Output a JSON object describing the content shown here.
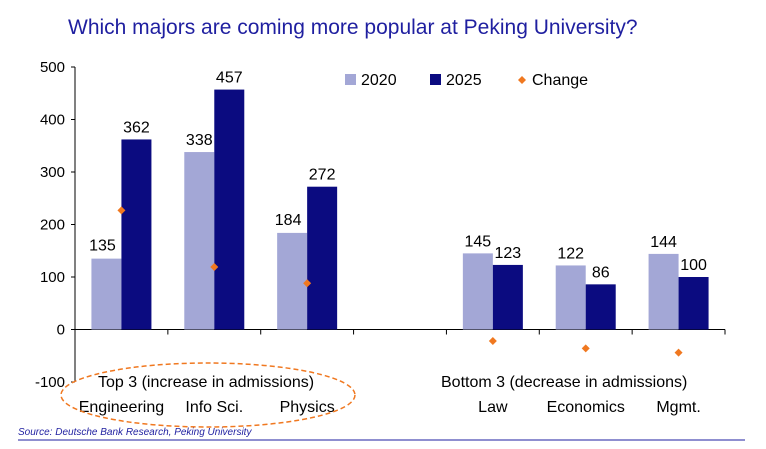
{
  "chart_data": {
    "type": "bar",
    "title": "Which majors are coming more popular at Peking University?",
    "categories": [
      "Engineering",
      "Info Sci.",
      "Physics",
      "",
      "Law",
      "Economics",
      "Mgmt."
    ],
    "series": [
      {
        "name": "2020",
        "values": [
          135,
          338,
          184,
          null,
          145,
          122,
          144
        ],
        "color": "#a3a7d6"
      },
      {
        "name": "2025",
        "values": [
          362,
          457,
          272,
          null,
          123,
          86,
          100
        ],
        "color": "#0b0b80"
      }
    ],
    "change": {
      "name": "Change",
      "values": [
        227,
        119,
        88,
        null,
        -22,
        -36,
        -44
      ],
      "color": "#f07820"
    },
    "ylim": [
      -100,
      500
    ],
    "yticks": [
      "500",
      "400",
      "300",
      "200",
      "100",
      "0",
      "-100"
    ],
    "legend_position": "top-right",
    "groups": {
      "top": "Top 3 (increase in admissions)",
      "bottom": "Bottom 3 (decrease in admissions)"
    },
    "source": "Source: Deutsche Bank Research, Peking University"
  }
}
